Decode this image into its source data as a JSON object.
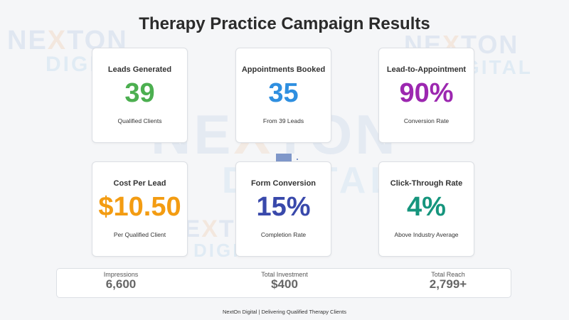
{
  "watermark": {
    "line1": "NEXTON",
    "line2": "DIGITAL"
  },
  "title": "Therapy Practice Campaign Results",
  "cards": [
    {
      "label": "Leads Generated",
      "value": "39",
      "sub": "Qualified Clients",
      "color": "#4caf50"
    },
    {
      "label": "Appointments Booked",
      "value": "35",
      "sub": "From 39 Leads",
      "color": "#2f8fe0"
    },
    {
      "label": "Lead-to-Appointment",
      "value": "90%",
      "sub": "Conversion Rate",
      "color": "#9c27b0"
    },
    {
      "label": "Cost Per Lead",
      "value": "$10.50",
      "sub": "Per Qualified Client",
      "color": "#f39c12"
    },
    {
      "label": "Form Conversion",
      "value": "15%",
      "sub": "Completion Rate",
      "color": "#3949ab"
    },
    {
      "label": "Click-Through Rate",
      "value": "4%",
      "sub": "Above Industry Average",
      "color": "#16957d"
    }
  ],
  "summary": [
    {
      "label": "Impressions",
      "value": "6,600"
    },
    {
      "label": "Total Investment",
      "value": "$400"
    },
    {
      "label": "Total Reach",
      "value": "2,799+"
    }
  ],
  "footer": "NextOn Digital | Delivering Qualified Therapy Clients"
}
